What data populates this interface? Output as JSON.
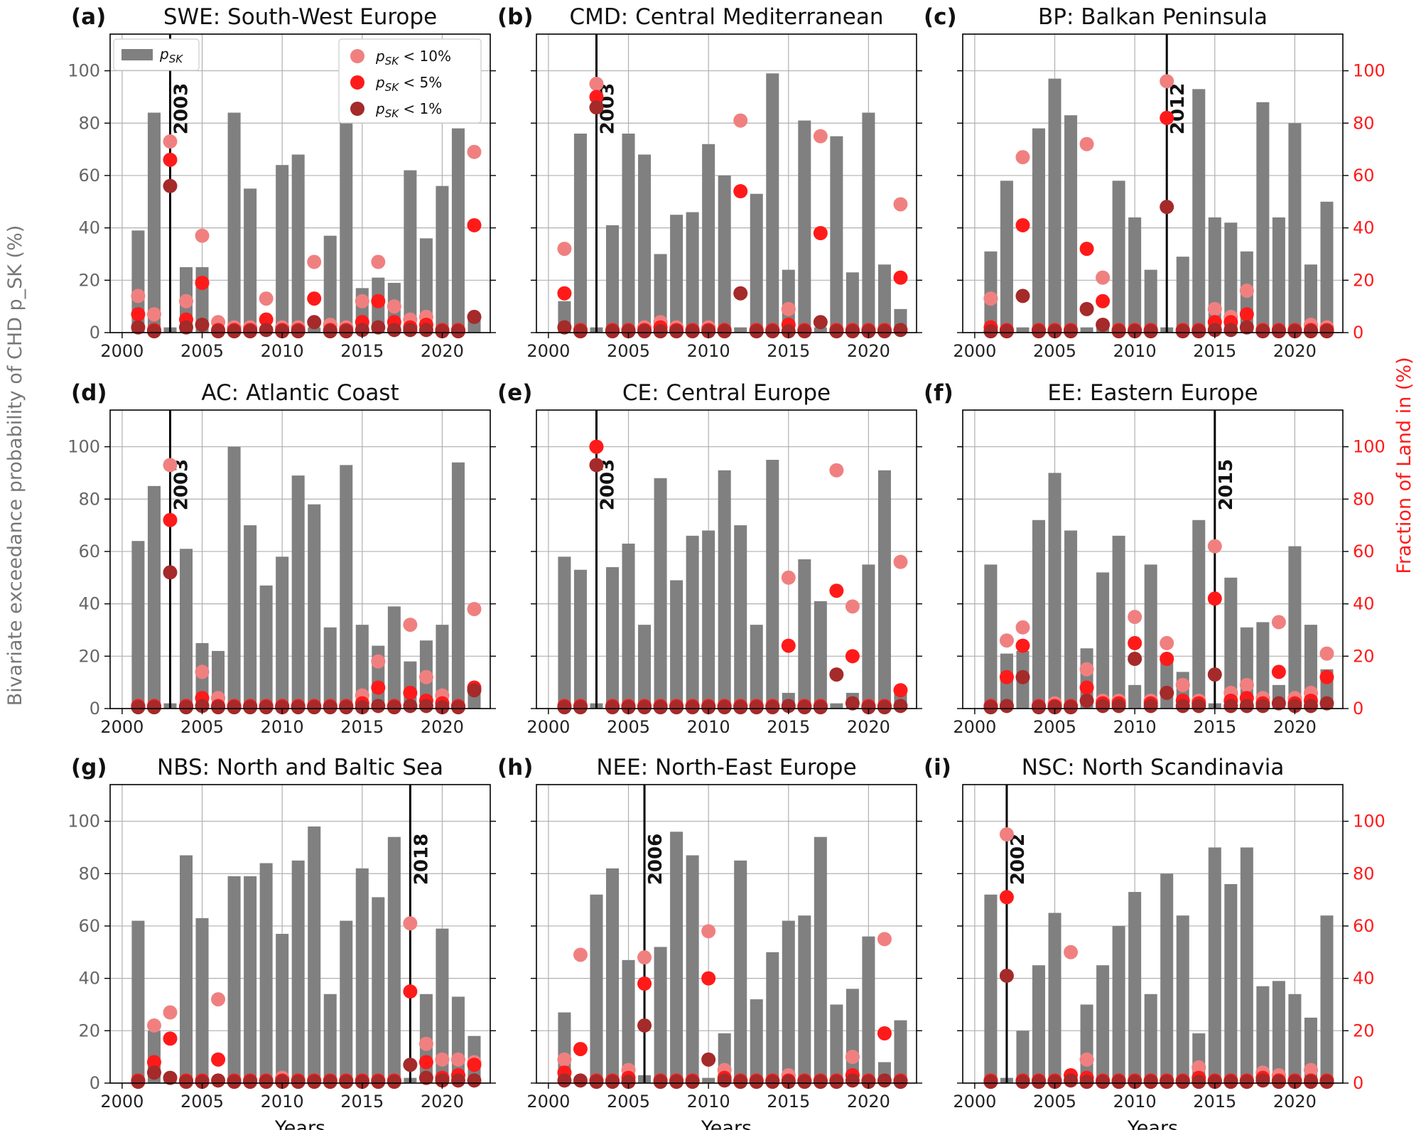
{
  "chart_data": {
    "type": "bar",
    "years": [
      2001,
      2002,
      2003,
      2004,
      2005,
      2006,
      2007,
      2008,
      2009,
      2010,
      2011,
      2012,
      2013,
      2014,
      2015,
      2016,
      2017,
      2018,
      2019,
      2020,
      2021,
      2022
    ],
    "xlabel": "Years",
    "ylabel_left": "Bivariate exceedance probability of CHD p_SK (%)",
    "ylabel_right": "Fraction of Land in (%)",
    "ylim": [
      0,
      114
    ],
    "yticks": [
      0,
      20,
      40,
      60,
      80,
      100
    ],
    "xticks": [
      2000,
      2005,
      2010,
      2015,
      2020
    ],
    "legend": {
      "bar": "p_SK",
      "p10": "p_SK < 10%",
      "p5": "p_SK < 5%",
      "p1": "p_SK < 1%"
    },
    "colors": {
      "bar": "#808080",
      "p10": "#f08080",
      "p5": "#ff1a1a",
      "p1": "#a52a2a",
      "axis_right": "#ff1a1a"
    },
    "panels": [
      {
        "letter": "(a)",
        "title": "SWE: South-West Europe",
        "marker_year": 2003,
        "bars": [
          39,
          84,
          2,
          25,
          25,
          2,
          84,
          55,
          2,
          64,
          68,
          2,
          37,
          89,
          17,
          21,
          19,
          62,
          36,
          56,
          78,
          5
        ],
        "p10": [
          14,
          7,
          73,
          12,
          37,
          4,
          2,
          2,
          13,
          2,
          2,
          27,
          3,
          2,
          12,
          27,
          10,
          5,
          6,
          1,
          1,
          69
        ],
        "p5": [
          7,
          1,
          66,
          5,
          19,
          1,
          1,
          1,
          5,
          1,
          1,
          13,
          1,
          1,
          4,
          12,
          4,
          2,
          3,
          1,
          1,
          41
        ],
        "p1": [
          2,
          0.5,
          56,
          2,
          3,
          0.5,
          0.5,
          0.5,
          1,
          0.5,
          0.5,
          4,
          0.5,
          0.5,
          1,
          2,
          1,
          1,
          1,
          0.5,
          0.5,
          6
        ]
      },
      {
        "letter": "(b)",
        "title": "CMD: Central Mediterranean",
        "marker_year": 2003,
        "bars": [
          12,
          76,
          2,
          41,
          76,
          68,
          30,
          45,
          46,
          72,
          60,
          2,
          53,
          99,
          24,
          81,
          2,
          75,
          23,
          84,
          26,
          9
        ],
        "p10": [
          32,
          1,
          95,
          1,
          1,
          2,
          4,
          2,
          1,
          2,
          1,
          81,
          1,
          1,
          9,
          1,
          75,
          1,
          1,
          1,
          1,
          49
        ],
        "p5": [
          15,
          1,
          90,
          1,
          1,
          1,
          2,
          1,
          1,
          1,
          1,
          54,
          1,
          1,
          3,
          1,
          38,
          1,
          1,
          1,
          1,
          21
        ],
        "p1": [
          2,
          0.5,
          86,
          0.5,
          0.5,
          0.5,
          0.5,
          0.5,
          0.5,
          0.5,
          0.5,
          15,
          0.5,
          0.5,
          0.5,
          0.5,
          4,
          0.5,
          0.5,
          0.5,
          0.5,
          1
        ]
      },
      {
        "letter": "(c)",
        "title": "BP: Balkan Peninsula",
        "marker_year": 2012,
        "bars": [
          31,
          58,
          2,
          78,
          97,
          83,
          2,
          2,
          58,
          44,
          24,
          2,
          29,
          93,
          44,
          42,
          31,
          88,
          44,
          80,
          26,
          50
        ],
        "p10": [
          13,
          1,
          67,
          1,
          1,
          1,
          72,
          21,
          1,
          1,
          1,
          96,
          1,
          1,
          9,
          6,
          16,
          1,
          1,
          1,
          3,
          2
        ],
        "p5": [
          2,
          1,
          41,
          1,
          1,
          1,
          32,
          12,
          1,
          1,
          1,
          82,
          1,
          1,
          4,
          4,
          7,
          1,
          1,
          1,
          1,
          1
        ],
        "p1": [
          0.5,
          0.5,
          14,
          0.5,
          0.5,
          0.5,
          9,
          3,
          0.5,
          0.5,
          0.5,
          48,
          0.5,
          0.5,
          1,
          1,
          2,
          0.5,
          0.5,
          0.5,
          0.5,
          0.5
        ]
      },
      {
        "letter": "(d)",
        "title": "AC: Atlantic Coast",
        "marker_year": 2003,
        "bars": [
          64,
          85,
          2,
          61,
          25,
          22,
          100,
          70,
          47,
          58,
          89,
          78,
          31,
          93,
          32,
          24,
          39,
          18,
          26,
          32,
          94,
          8
        ],
        "p10": [
          1,
          1,
          93,
          1,
          14,
          4,
          1,
          1,
          1,
          1,
          1,
          1,
          1,
          1,
          5,
          18,
          1,
          32,
          12,
          5,
          1,
          38
        ],
        "p5": [
          1,
          1,
          72,
          1,
          4,
          1,
          1,
          1,
          1,
          1,
          1,
          1,
          1,
          1,
          2,
          8,
          1,
          6,
          3,
          2,
          1,
          8
        ],
        "p1": [
          0.5,
          0.5,
          52,
          0.5,
          1,
          0.5,
          0.5,
          0.5,
          0.5,
          0.5,
          0.5,
          0.5,
          0.5,
          0.5,
          0.5,
          1,
          0.5,
          1,
          1,
          0.5,
          0.5,
          7
        ]
      },
      {
        "letter": "(e)",
        "title": "CE: Central Europe",
        "marker_year": 2003,
        "bars": [
          58,
          53,
          2,
          54,
          63,
          32,
          88,
          49,
          66,
          68,
          91,
          70,
          32,
          95,
          6,
          57,
          41,
          2,
          6,
          55,
          91,
          8
        ],
        "p10": [
          1,
          1,
          100,
          1,
          1,
          1,
          1,
          1,
          1,
          1,
          1,
          1,
          1,
          1,
          50,
          1,
          1,
          91,
          39,
          1,
          1,
          56
        ],
        "p5": [
          1,
          1,
          100,
          1,
          1,
          1,
          1,
          1,
          1,
          1,
          1,
          1,
          1,
          1,
          24,
          1,
          1,
          45,
          20,
          1,
          1,
          7
        ],
        "p1": [
          0.5,
          0.5,
          93,
          0.5,
          0.5,
          0.5,
          0.5,
          0.5,
          0.5,
          0.5,
          0.5,
          0.5,
          0.5,
          0.5,
          1,
          0.5,
          0.5,
          13,
          2,
          0.5,
          0.5,
          1
        ]
      },
      {
        "letter": "(f)",
        "title": "EE: Eastern Europe",
        "marker_year": 2015,
        "bars": [
          55,
          21,
          22,
          72,
          90,
          68,
          23,
          52,
          66,
          9,
          55,
          20,
          14,
          72,
          2,
          50,
          31,
          33,
          9,
          62,
          32,
          15
        ],
        "p10": [
          1,
          26,
          31,
          1,
          2,
          1,
          15,
          3,
          3,
          35,
          3,
          25,
          9,
          3,
          62,
          6,
          9,
          4,
          33,
          4,
          6,
          21
        ],
        "p5": [
          1,
          12,
          24,
          1,
          1,
          1,
          8,
          2,
          2,
          25,
          2,
          19,
          3,
          2,
          42,
          3,
          4,
          2,
          14,
          2,
          3,
          12
        ],
        "p1": [
          0.5,
          1,
          12,
          0.5,
          0.5,
          0.5,
          3,
          1,
          1,
          19,
          1,
          6,
          1,
          1,
          13,
          1,
          1,
          1,
          2,
          1,
          1,
          2
        ]
      },
      {
        "letter": "(g)",
        "title": "NBS: North and Baltic Sea",
        "marker_year": 2018,
        "bars": [
          62,
          20,
          2,
          87,
          63,
          2,
          79,
          79,
          84,
          57,
          85,
          98,
          34,
          62,
          82,
          71,
          94,
          2,
          34,
          59,
          33,
          18
        ],
        "p10": [
          1,
          22,
          27,
          1,
          1,
          32,
          1,
          1,
          1,
          2,
          1,
          1,
          1,
          1,
          1,
          1,
          1,
          61,
          15,
          9,
          9,
          8
        ],
        "p5": [
          1,
          8,
          17,
          1,
          1,
          9,
          1,
          1,
          1,
          1,
          1,
          1,
          1,
          1,
          1,
          1,
          1,
          35,
          8,
          2,
          3,
          7
        ],
        "p1": [
          0.5,
          4,
          2,
          0.5,
          0.5,
          1,
          0.5,
          0.5,
          0.5,
          0.5,
          0.5,
          0.5,
          0.5,
          0.5,
          0.5,
          0.5,
          0.5,
          7,
          2,
          1,
          1,
          1
        ]
      },
      {
        "letter": "(h)",
        "title": "NEE: North-East Europe",
        "marker_year": 2006,
        "bars": [
          27,
          2,
          72,
          82,
          47,
          3,
          52,
          96,
          87,
          2,
          19,
          85,
          32,
          50,
          62,
          64,
          94,
          30,
          36,
          56,
          8,
          24
        ],
        "p10": [
          9,
          49,
          1,
          1,
          5,
          48,
          1,
          1,
          1,
          58,
          5,
          1,
          1,
          1,
          3,
          1,
          1,
          1,
          10,
          1,
          55,
          1
        ],
        "p5": [
          4,
          13,
          1,
          1,
          2,
          38,
          1,
          1,
          1,
          40,
          2,
          1,
          1,
          1,
          1,
          1,
          1,
          1,
          3,
          1,
          19,
          1
        ],
        "p1": [
          1,
          1,
          0.5,
          0.5,
          0.5,
          22,
          0.5,
          0.5,
          0.5,
          9,
          1,
          0.5,
          0.5,
          0.5,
          0.5,
          0.5,
          0.5,
          0.5,
          1,
          0.5,
          1,
          0.5
        ]
      },
      {
        "letter": "(i)",
        "title": "NSC: North Scandinavia",
        "marker_year": 2002,
        "bars": [
          72,
          2,
          20,
          45,
          65,
          2,
          30,
          45,
          60,
          73,
          34,
          80,
          64,
          19,
          90,
          76,
          90,
          37,
          39,
          34,
          25,
          64
        ],
        "p10": [
          1,
          95,
          1,
          1,
          1,
          50,
          9,
          1,
          1,
          1,
          1,
          1,
          1,
          6,
          1,
          1,
          1,
          4,
          3,
          1,
          5,
          1
        ],
        "p5": [
          1,
          71,
          1,
          1,
          1,
          3,
          2,
          1,
          1,
          1,
          1,
          1,
          1,
          2,
          1,
          1,
          1,
          2,
          1,
          1,
          1,
          1
        ],
        "p1": [
          0.5,
          41,
          0.5,
          0.5,
          0.5,
          1,
          0.5,
          0.5,
          0.5,
          0.5,
          0.5,
          0.5,
          0.5,
          0.5,
          0.5,
          0.5,
          0.5,
          1,
          0.5,
          0.5,
          0.5,
          0.5
        ]
      }
    ]
  }
}
